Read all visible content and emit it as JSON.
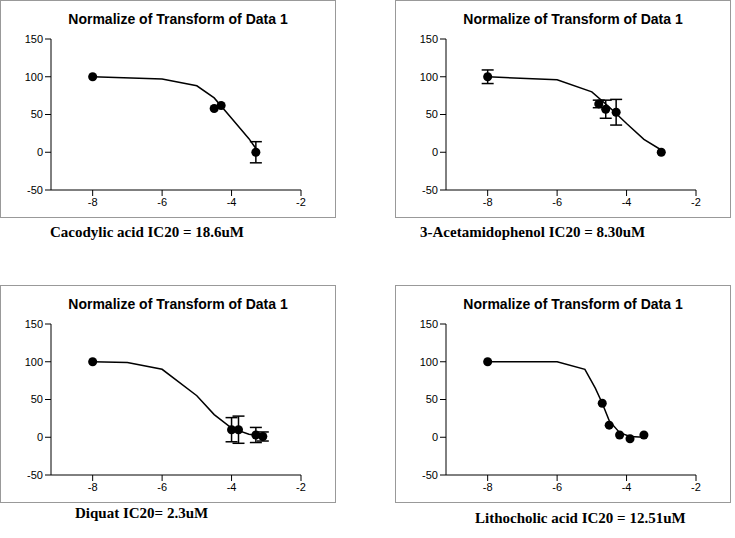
{
  "chart_data": [
    {
      "type": "scatter",
      "title": "Normalize of Transform of Data 1",
      "caption": "Cacodylic acid IC20 = 18.6uM",
      "x": [
        -8,
        -4.5,
        -4.3,
        -3.3
      ],
      "values": [
        100,
        58,
        62,
        0
      ],
      "errors": [
        null,
        null,
        null,
        14
      ],
      "fit": {
        "x": [
          -8,
          -6,
          -5,
          -4.5,
          -4,
          -3.5,
          -3.3
        ],
        "values": [
          100,
          97,
          88,
          72,
          45,
          18,
          5
        ]
      },
      "color": "#000000",
      "xlim": [
        -9.2,
        -2
      ],
      "xticks": [
        -8,
        -6,
        -4,
        -2
      ],
      "ylim": [
        -50,
        150
      ],
      "yticks": [
        -50,
        0,
        50,
        100,
        150
      ]
    },
    {
      "type": "scatter",
      "title": "Normalize of Transform of Data 1",
      "caption": "3-Acetamidophenol IC20 = 8.30uM",
      "x": [
        -8,
        -4.8,
        -4.6,
        -4.3,
        -3
      ],
      "values": [
        100,
        64,
        57,
        53,
        0
      ],
      "errors": [
        9,
        5,
        12,
        17,
        null
      ],
      "fit": {
        "x": [
          -8,
          -6,
          -5,
          -4.5,
          -4,
          -3.5,
          -3
        ],
        "values": [
          100,
          96,
          80,
          60,
          38,
          17,
          3
        ]
      },
      "color": "#000000",
      "xlim": [
        -9.2,
        -2
      ],
      "xticks": [
        -8,
        -6,
        -4,
        -2
      ],
      "ylim": [
        -50,
        150
      ],
      "yticks": [
        -50,
        0,
        50,
        100,
        150
      ]
    },
    {
      "type": "scatter",
      "title": "Normalize of Transform of Data 1",
      "caption": "Diquat IC20= 2.3uM",
      "x": [
        -8,
        -4,
        -3.8,
        -3.3,
        -3.1
      ],
      "values": [
        100,
        10,
        10,
        3,
        1
      ],
      "errors": [
        null,
        16,
        18,
        10,
        6
      ],
      "fit": {
        "x": [
          -8,
          -7,
          -6,
          -5,
          -4.5,
          -4,
          -3.5,
          -3
        ],
        "values": [
          100,
          99,
          90,
          55,
          30,
          12,
          4,
          1
        ]
      },
      "color": "#000000",
      "xlim": [
        -9.2,
        -2
      ],
      "xticks": [
        -8,
        -6,
        -4,
        -2
      ],
      "ylim": [
        -50,
        150
      ],
      "yticks": [
        -50,
        0,
        50,
        100,
        150
      ]
    },
    {
      "type": "scatter",
      "title": "Normalize of Transform of Data 1",
      "caption": "Lithocholic acid IC20 = 12.51uM",
      "x": [
        -8,
        -4.7,
        -4.5,
        -4.2,
        -3.9,
        -3.5
      ],
      "values": [
        100,
        45,
        16,
        3,
        -2,
        3
      ],
      "errors": [
        null,
        null,
        null,
        null,
        null,
        null
      ],
      "fit": {
        "x": [
          -8,
          -6,
          -5.2,
          -4.9,
          -4.7,
          -4.5,
          -4.2,
          -3.9,
          -3.5
        ],
        "values": [
          100,
          100,
          90,
          65,
          45,
          22,
          6,
          1,
          0
        ]
      },
      "color": "#000000",
      "xlim": [
        -9.2,
        -2
      ],
      "xticks": [
        -8,
        -6,
        -4,
        -2
      ],
      "ylim": [
        -50,
        150
      ],
      "yticks": [
        -50,
        0,
        50,
        100,
        150
      ]
    }
  ]
}
